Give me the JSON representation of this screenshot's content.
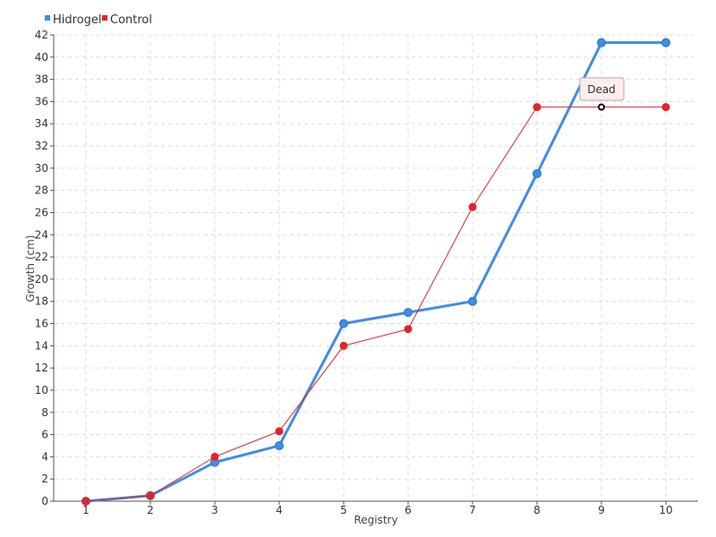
{
  "chart_data": {
    "type": "line",
    "title": "",
    "xlabel": "Registry",
    "ylabel": "Growth (cm)",
    "x": [
      1,
      2,
      3,
      4,
      5,
      6,
      7,
      8,
      9,
      10
    ],
    "xlim": [
      0.5,
      10.5
    ],
    "ylim": [
      0,
      42
    ],
    "yticks": [
      0,
      2,
      4,
      6,
      8,
      10,
      12,
      14,
      16,
      18,
      20,
      22,
      24,
      26,
      28,
      30,
      32,
      34,
      36,
      38,
      40,
      42
    ],
    "grid": true,
    "legend_placement": "top-left",
    "series": [
      {
        "name": "Hidrogel",
        "color": "#3d8ee8",
        "values": [
          0,
          0.5,
          3.5,
          5,
          16,
          17,
          18,
          29.5,
          41.3,
          41.3
        ]
      },
      {
        "name": "Control",
        "color": "#e5232b",
        "values": [
          0,
          0.5,
          4,
          6.3,
          14,
          15.5,
          26.5,
          35.5,
          35.5,
          35.5
        ]
      }
    ],
    "annotation": {
      "text": "Dead",
      "x": 9,
      "y": 35.5,
      "series": "Control"
    }
  }
}
